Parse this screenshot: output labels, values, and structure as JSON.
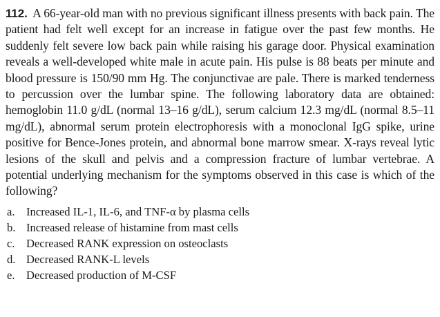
{
  "question": {
    "number": "112.",
    "text": "A 66-year-old man with no previous significant illness presents with back pain. The patient had felt well except for an increase in fatigue over the past few months. He suddenly felt severe low back pain while raising his garage door. Physical examination reveals a well-developed white male in acute pain. His pulse is 88 beats per minute and blood pressure is 150/90 mm Hg. The conjunctivae are pale. There is marked tenderness to percussion over the lumbar spine. The following laboratory data are obtained: hemoglobin 11.0 g/dL (normal 13–16 g/dL), serum calcium 12.3 mg/dL (normal 8.5–11 mg/dL), abnormal serum protein electrophoresis with a monoclonal IgG spike, urine positive for Bence-Jones protein, and abnormal bone marrow smear. X-rays reveal lytic lesions of the skull and pelvis and a compression fracture of lumbar vertebrae. A potential underlying mechanism for the symptoms observed in this case is which of the following?"
  },
  "options": [
    {
      "letter": "a.",
      "text": "Increased IL-1, IL-6, and TNF-α by plasma cells"
    },
    {
      "letter": "b.",
      "text": "Increased release of histamine from mast cells"
    },
    {
      "letter": "c.",
      "text": "Decreased RANK expression on osteoclasts"
    },
    {
      "letter": "d.",
      "text": "Decreased RANK-L levels"
    },
    {
      "letter": "e.",
      "text": "Decreased production of M-CSF"
    }
  ]
}
